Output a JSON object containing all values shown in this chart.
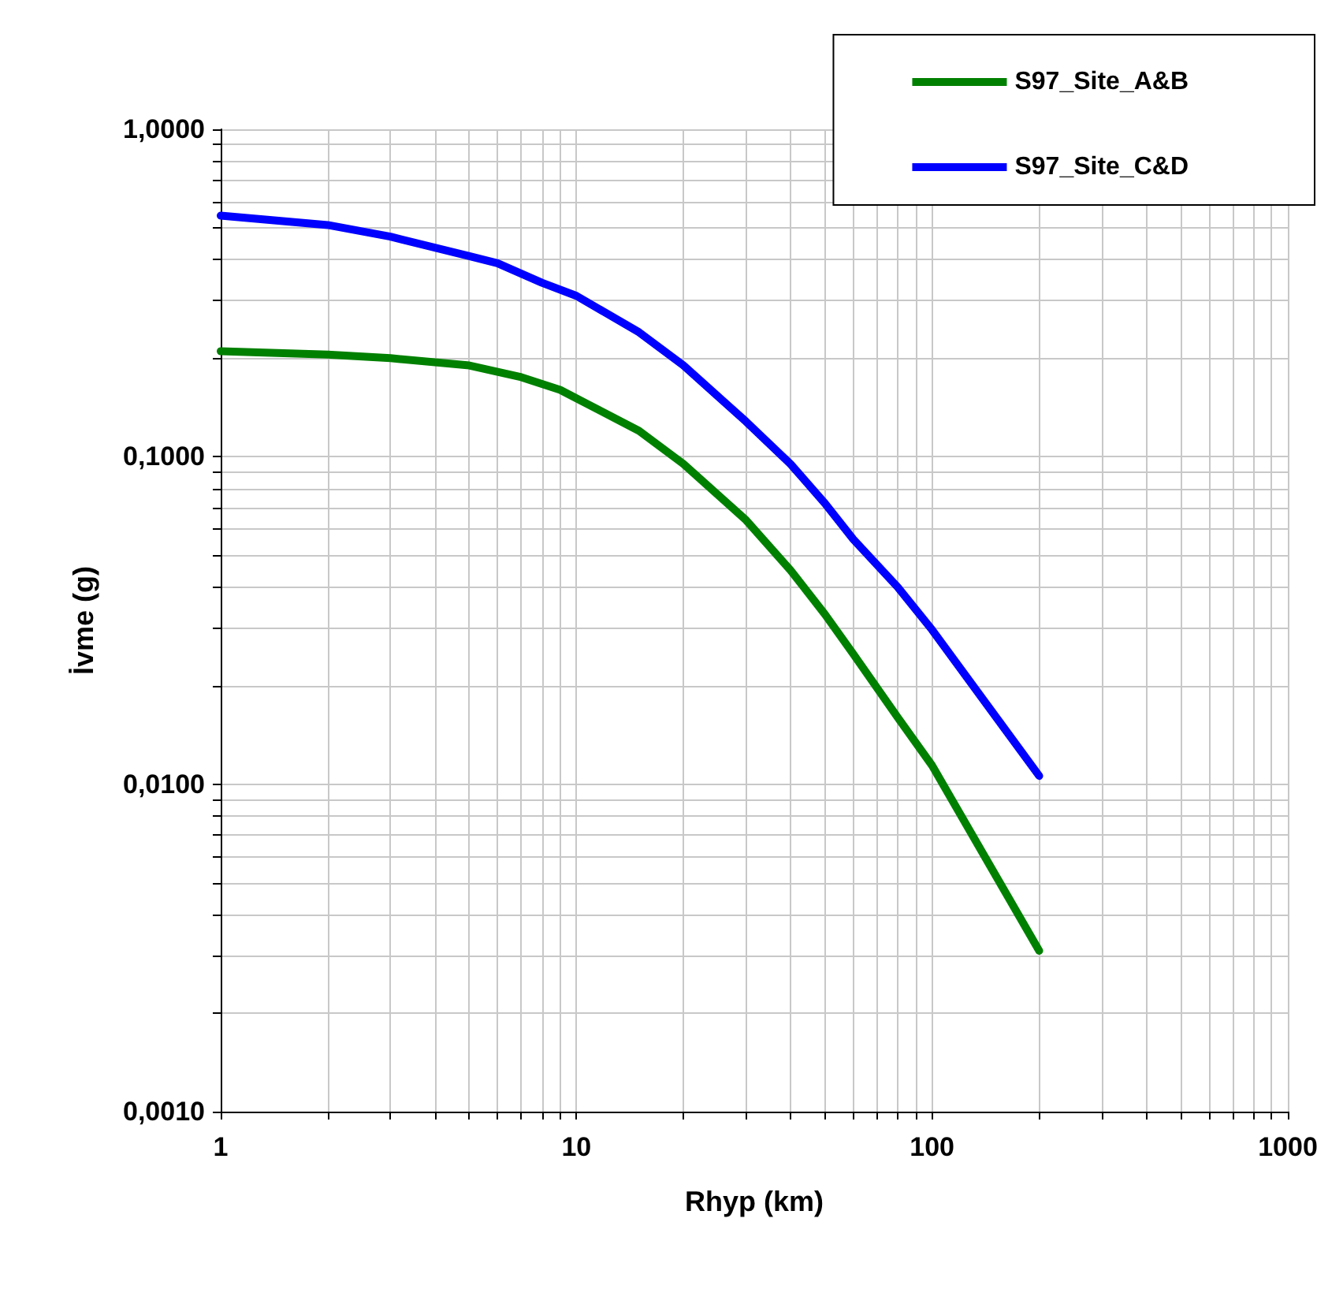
{
  "chart_data": {
    "type": "line",
    "xlabel": "Rhyp (km)",
    "ylabel": "İvme (g)",
    "log": "xy",
    "grid": true,
    "legend": "top right",
    "marker": "none",
    "line_style": "solid",
    "xlim": [
      1,
      1000
    ],
    "xticks": [
      1,
      10,
      100,
      1000
    ],
    "ylim": [
      0.001,
      1
    ],
    "yticks": [
      {
        "value": 0.001,
        "label": "0,0010"
      },
      {
        "value": 0.01,
        "label": "0,0100"
      },
      {
        "value": 0.1,
        "label": "0,1000"
      },
      {
        "value": 1,
        "label": "1,0000"
      }
    ],
    "series": [
      {
        "name": "S97_Site_A&B",
        "color": "#008000",
        "x": [
          1,
          2,
          3,
          5,
          7,
          9,
          15,
          20,
          30,
          40,
          50,
          60,
          80,
          100,
          200
        ],
        "values": [
          0.21,
          0.205,
          0.2,
          0.19,
          0.175,
          0.16,
          0.12,
          0.095,
          0.064,
          0.045,
          0.033,
          0.025,
          0.016,
          0.0114,
          0.0031
        ]
      },
      {
        "name": "S97_Site_C&D",
        "color": "#0000ff",
        "x": [
          1,
          2,
          3,
          5,
          6,
          8,
          10,
          15,
          20,
          30,
          40,
          50,
          60,
          80,
          100,
          200
        ],
        "values": [
          0.545,
          0.51,
          0.47,
          0.41,
          0.39,
          0.34,
          0.31,
          0.24,
          0.19,
          0.128,
          0.095,
          0.072,
          0.056,
          0.04,
          0.0296,
          0.0106
        ]
      }
    ]
  }
}
